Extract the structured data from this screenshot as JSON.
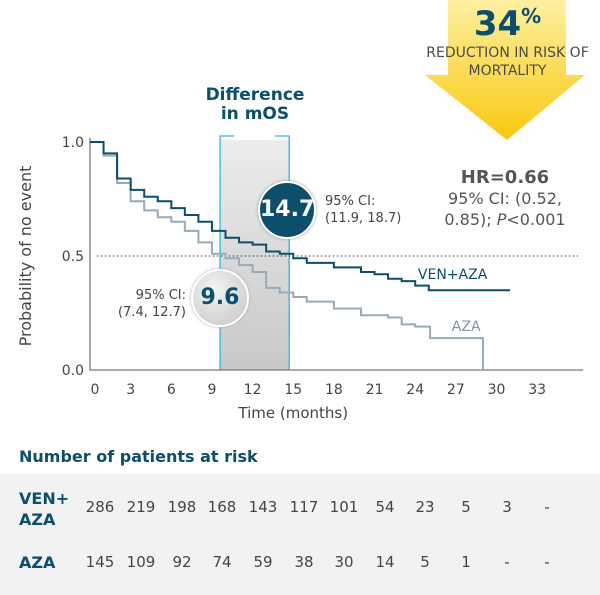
{
  "banner": {
    "value": "34",
    "unit": "%",
    "text": "REDUCTION IN RISK OF MORTALITY",
    "color": "#f9c80e"
  },
  "difference_label": "Difference in mOS",
  "hr": {
    "title": "HR=0.66",
    "ci": "95% CI: (0.52, 0.85); ",
    "p_label": "P",
    "p_value": "<0.001"
  },
  "median_ven": {
    "value": "14.7",
    "ci_label": "95% CI:",
    "ci": "(11.9, 18.7)",
    "color": "#0b4f6c"
  },
  "median_aza": {
    "value": "9.6",
    "ci_label": "95% CI:",
    "ci": "(7.4, 12.7)"
  },
  "chart_data": {
    "type": "line",
    "title": "",
    "xlabel": "Time (months)",
    "ylabel": "Probability of no event",
    "xlim": [
      0,
      36
    ],
    "ylim": [
      0,
      1
    ],
    "xticks": [
      0,
      3,
      6,
      9,
      12,
      15,
      18,
      21,
      24,
      27,
      30,
      33
    ],
    "yticks": [
      "0.0",
      "0.5",
      "1.0"
    ],
    "reference_line": 0.5,
    "shaded_interval": [
      9.6,
      14.7
    ],
    "series": [
      {
        "name": "VEN+AZA",
        "color": "#0b4f6c",
        "x": [
          0,
          1,
          2,
          3,
          4,
          5,
          6,
          7,
          8,
          9,
          10,
          11,
          12,
          13,
          14,
          15,
          16,
          18,
          20,
          21,
          22,
          23,
          24,
          25,
          31
        ],
        "y": [
          1.0,
          0.95,
          0.84,
          0.79,
          0.76,
          0.74,
          0.71,
          0.68,
          0.65,
          0.61,
          0.58,
          0.56,
          0.55,
          0.52,
          0.51,
          0.49,
          0.47,
          0.45,
          0.43,
          0.42,
          0.4,
          0.39,
          0.37,
          0.35,
          0.35
        ]
      },
      {
        "name": "AZA",
        "color": "#9aabb8",
        "x": [
          0,
          1,
          2,
          3,
          4,
          5,
          6,
          7,
          8,
          9,
          10,
          11,
          12,
          13,
          14,
          15,
          16,
          18,
          20,
          22,
          23,
          24,
          25,
          25.1,
          29,
          29
        ],
        "y": [
          1.0,
          0.94,
          0.82,
          0.74,
          0.7,
          0.67,
          0.65,
          0.61,
          0.56,
          0.51,
          0.49,
          0.46,
          0.43,
          0.36,
          0.34,
          0.32,
          0.3,
          0.27,
          0.24,
          0.23,
          0.2,
          0.19,
          0.19,
          0.14,
          0.14,
          0.0
        ]
      }
    ]
  },
  "risk_table": {
    "title": "Number of patients at risk",
    "rows": [
      {
        "label": "VEN+ AZA",
        "values": [
          "286",
          "219",
          "198",
          "168",
          "143",
          "117",
          "101",
          "54",
          "23",
          "5",
          "3",
          "-"
        ]
      },
      {
        "label": "AZA",
        "values": [
          "145",
          "109",
          "92",
          "74",
          "59",
          "38",
          "30",
          "14",
          "5",
          "1",
          "-",
          "-"
        ]
      }
    ]
  }
}
